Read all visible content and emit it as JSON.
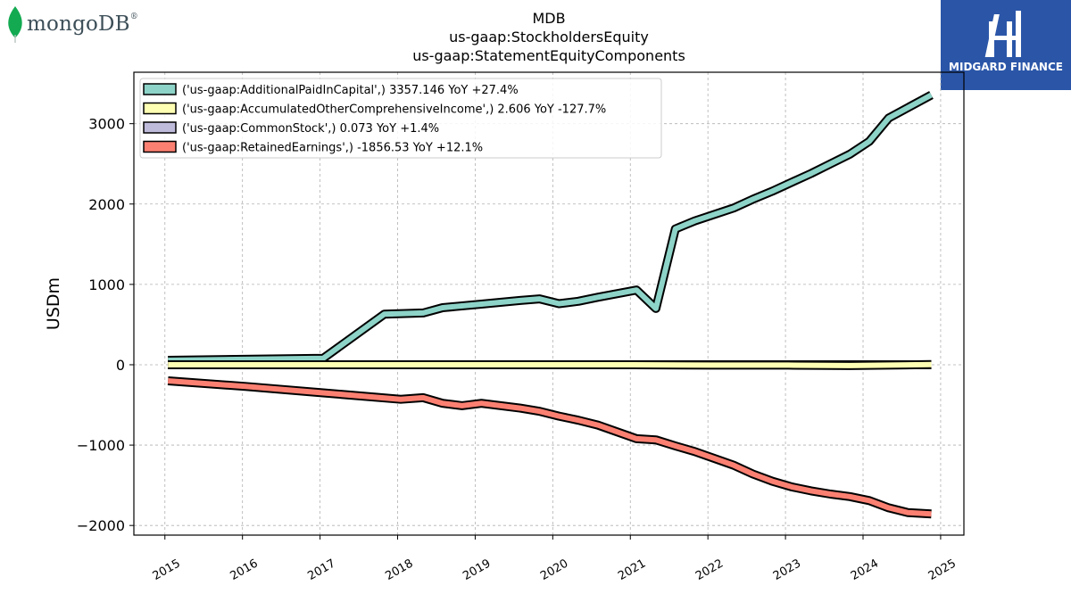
{
  "logos": {
    "left": {
      "text": "mongoDB",
      "reg": "®"
    },
    "right": {
      "text": "MIDGARD FINANCE"
    }
  },
  "colors": {
    "apic": "#8dd3c7",
    "aoci": "#ffffb3",
    "common": "#bebada",
    "retained": "#fb8072",
    "brand_blue": "#2b56a8",
    "mongo_green": "#13aa52"
  },
  "chart_data": {
    "type": "line",
    "title": "MDB",
    "subtitle_lines": [
      "us-gaap:StockholdersEquity",
      "us-gaap:StatementEquityComponents"
    ],
    "xlabel": "",
    "ylabel": "USDm",
    "xlim": [
      2014.6,
      2025.3
    ],
    "ylim": [
      -2120,
      3640
    ],
    "x_ticks": [
      2015,
      2016,
      2017,
      2018,
      2019,
      2020,
      2021,
      2022,
      2023,
      2024,
      2025
    ],
    "x_tick_labels": [
      "2015",
      "2016",
      "2017",
      "2018",
      "2019",
      "2020",
      "2021",
      "2022",
      "2023",
      "2024",
      "2025"
    ],
    "y_ticks": [
      -2000,
      -1000,
      0,
      1000,
      2000,
      3000
    ],
    "y_tick_labels": [
      "−2000",
      "−1000",
      "0",
      "1000",
      "2000",
      "3000"
    ],
    "grid": true,
    "legend_position": "top-left",
    "series": [
      {
        "name": "('us-gaap:AdditionalPaidInCapital',) 3357.146 YoY +27.4%",
        "color_key": "apic",
        "x": [
          2015.04,
          2017.04,
          2017.83,
          2018.33,
          2018.58,
          2019.08,
          2019.58,
          2019.83,
          2020.08,
          2020.33,
          2020.58,
          2021.08,
          2021.33,
          2021.58,
          2021.83,
          2022.33,
          2022.58,
          2022.83,
          2023.08,
          2023.33,
          2023.58,
          2023.83,
          2024.08,
          2024.33,
          2024.58,
          2024.88
        ],
        "y": [
          55,
          80,
          630,
          645,
          710,
          755,
          800,
          820,
          760,
          790,
          840,
          930,
          700,
          1690,
          1790,
          1950,
          2060,
          2160,
          2270,
          2380,
          2500,
          2620,
          2780,
          3070,
          3200,
          3357
        ]
      },
      {
        "name": "('us-gaap:AccumulatedOtherComprehensiveIncome',) 2.606 YoY -127.7%",
        "color_key": "aoci",
        "x": [
          2015.04,
          2016.04,
          2017.04,
          2018.04,
          2019.04,
          2020.04,
          2021.04,
          2022.04,
          2023.04,
          2023.83,
          2024.33,
          2024.88
        ],
        "y": [
          0,
          0,
          0,
          0,
          0,
          0,
          0,
          -5,
          -5,
          -10,
          -5,
          2.606
        ]
      },
      {
        "name": "('us-gaap:CommonStock',) 0.073 YoY +1.4%",
        "color_key": "common",
        "x": [
          2015.04,
          2016.04,
          2017.04,
          2018.04,
          2019.04,
          2020.04,
          2021.04,
          2022.04,
          2023.04,
          2024.04,
          2024.88
        ],
        "y": [
          0.05,
          0.05,
          0.05,
          0.06,
          0.06,
          0.06,
          0.07,
          0.07,
          0.07,
          0.072,
          0.073
        ]
      },
      {
        "name": "('us-gaap:RetainedEarnings',) -1856.53 YoY +12.1%",
        "color_key": "retained",
        "x": [
          2015.04,
          2016.04,
          2017.04,
          2018.04,
          2018.33,
          2018.58,
          2018.83,
          2019.08,
          2019.58,
          2019.83,
          2020.08,
          2020.33,
          2020.58,
          2021.08,
          2021.33,
          2021.58,
          2021.83,
          2022.33,
          2022.58,
          2022.83,
          2023.08,
          2023.33,
          2023.58,
          2023.83,
          2024.08,
          2024.33,
          2024.58,
          2024.88
        ],
        "y": [
          -200,
          -270,
          -350,
          -430,
          -410,
          -480,
          -510,
          -480,
          -540,
          -580,
          -640,
          -690,
          -750,
          -920,
          -935,
          -1010,
          -1080,
          -1250,
          -1360,
          -1450,
          -1520,
          -1570,
          -1610,
          -1640,
          -1690,
          -1780,
          -1840,
          -1856.53
        ]
      }
    ]
  }
}
